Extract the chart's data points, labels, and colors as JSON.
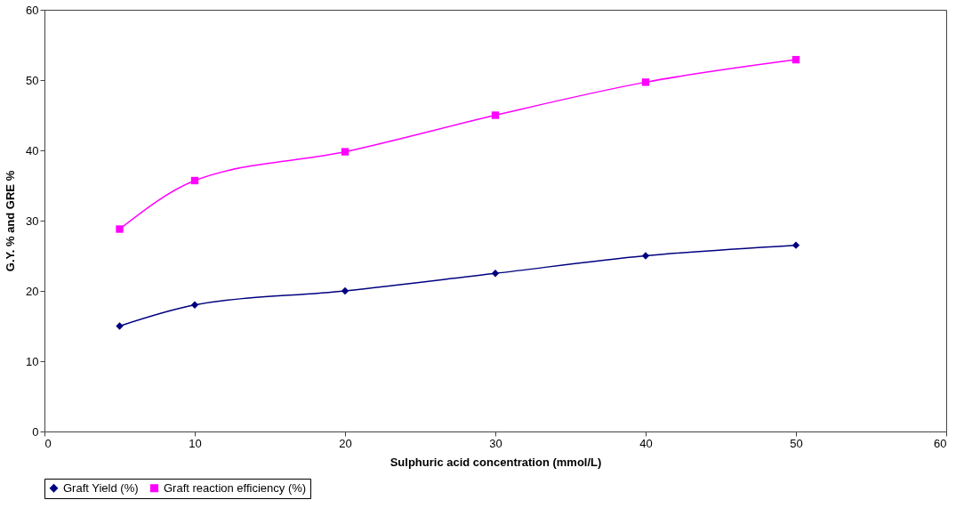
{
  "chart_data": {
    "type": "line",
    "xlabel": "Sulphuric acid concentration (mmol/L)",
    "ylabel": "G.Y. % and GRE %",
    "x": [
      5,
      10,
      20,
      30,
      40,
      50
    ],
    "series": [
      {
        "name": "Graft Yield (%)",
        "color": "#000080",
        "marker": "diamond",
        "values": [
          15,
          18,
          20,
          22.5,
          25,
          26.5
        ]
      },
      {
        "name": "Graft reaction efficiency (%)",
        "color": "#ff00ff",
        "marker": "square",
        "values": [
          28.8,
          35.7,
          39.8,
          45,
          49.7,
          52.9
        ]
      }
    ],
    "xlim": [
      0,
      60
    ],
    "xticks": [
      0,
      10,
      20,
      30,
      40,
      50,
      60
    ],
    "ylim": [
      0,
      60
    ],
    "yticks": [
      0,
      10,
      20,
      30,
      40,
      50,
      60
    ],
    "grid": false,
    "legend": "bottom"
  }
}
